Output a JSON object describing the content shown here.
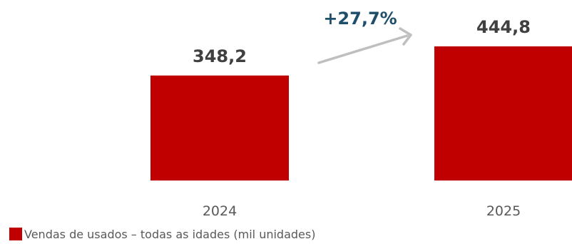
{
  "chart_data": {
    "type": "bar",
    "categories": [
      "2024",
      "2025"
    ],
    "values": [
      348.2,
      444.8
    ],
    "value_labels": [
      "348,2",
      "444,8"
    ],
    "growth_annotation": "+27,7%",
    "legend": [
      {
        "name": "Vendas de usados – todas as idades (mil unidades)",
        "color": "#c00000"
      }
    ],
    "ylim": [
      0,
      444.8
    ],
    "grid": false,
    "legend_position": "bottom-left",
    "colors": {
      "bar": "#c00000",
      "arrow": "#bfbfbf",
      "growth_text": "#1f4e6b",
      "value_text": "#404040",
      "tick_text": "#595959"
    }
  }
}
